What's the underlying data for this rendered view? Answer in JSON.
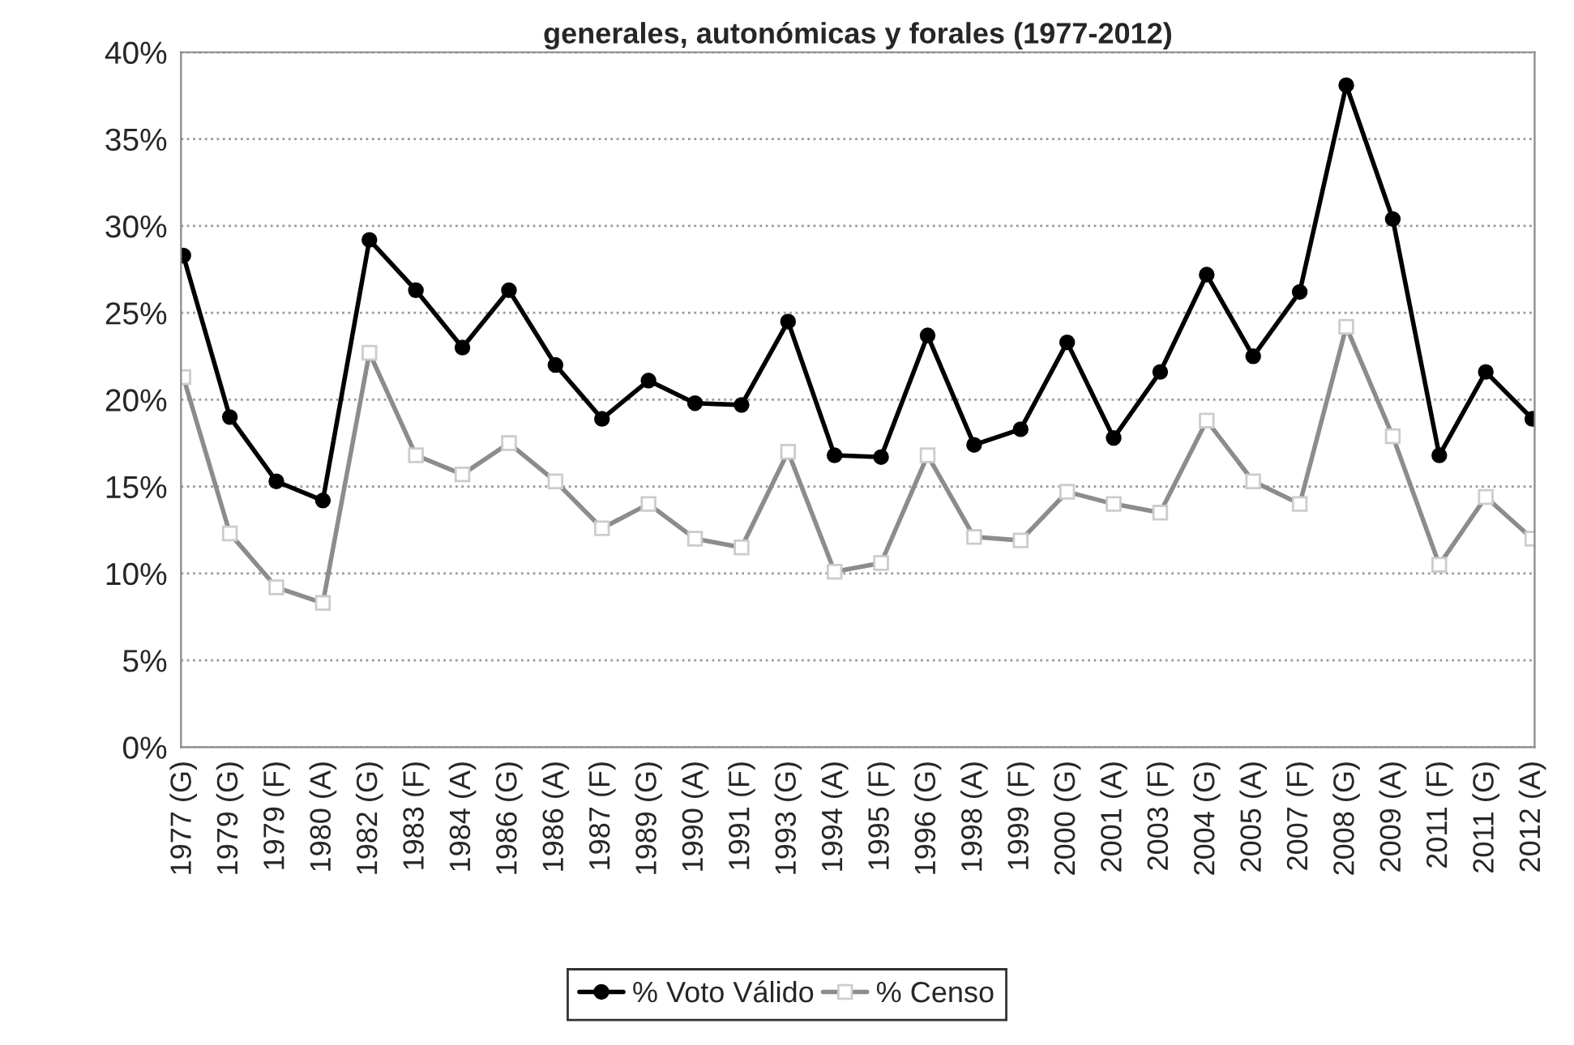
{
  "chart_data": {
    "type": "line",
    "title": "generales, autonómicas y forales (1977-2012)",
    "categories": [
      "1977 (G)",
      "1979 (G)",
      "1979 (F)",
      "1980 (A)",
      "1982 (G)",
      "1983 (F)",
      "1984 (A)",
      "1986 (G)",
      "1986 (A)",
      "1987 (F)",
      "1989 (G)",
      "1990 (A)",
      "1991 (F)",
      "1993 (G)",
      "1994 (A)",
      "1995 (F)",
      "1996 (G)",
      "1998 (A)",
      "1999 (F)",
      "2000 (G)",
      "2001 (A)",
      "2003 (F)",
      "2004 (G)",
      "2005 (A)",
      "2007 (F)",
      "2008 (G)",
      "2009 (A)",
      "2011 (F)",
      "2011 (G)",
      "2012 (A)"
    ],
    "series": [
      {
        "name": "% Voto Válido",
        "color": "#000000",
        "marker": "circle",
        "values": [
          28.3,
          19.0,
          15.3,
          14.2,
          29.2,
          26.3,
          23.0,
          26.3,
          22.0,
          18.9,
          21.1,
          19.8,
          19.7,
          24.5,
          16.8,
          16.7,
          23.7,
          17.4,
          18.3,
          23.3,
          17.8,
          21.6,
          27.2,
          22.5,
          26.2,
          38.1,
          30.4,
          16.8,
          21.6,
          18.9
        ]
      },
      {
        "name": "% Censo",
        "color": "#8c8c8c",
        "marker": "square",
        "values": [
          21.3,
          12.3,
          9.2,
          8.3,
          22.7,
          16.8,
          15.7,
          17.5,
          15.3,
          12.6,
          14.0,
          12.0,
          11.5,
          17.0,
          10.1,
          10.6,
          16.8,
          12.1,
          11.9,
          14.7,
          14.0,
          13.5,
          18.8,
          15.3,
          14.0,
          24.2,
          17.9,
          10.5,
          14.4,
          12.0
        ]
      }
    ],
    "ylim": [
      0,
      40
    ],
    "yticks": [
      {
        "value": 0,
        "label": "0%"
      },
      {
        "value": 5,
        "label": "5%"
      },
      {
        "value": 10,
        "label": "10%"
      },
      {
        "value": 15,
        "label": "15%"
      },
      {
        "value": 20,
        "label": "20%"
      },
      {
        "value": 25,
        "label": "25%"
      },
      {
        "value": 30,
        "label": "30%"
      },
      {
        "value": 35,
        "label": "35%"
      },
      {
        "value": 40,
        "label": "40%"
      }
    ],
    "grid": "y",
    "legend": "bottom",
    "line_style": "solid"
  }
}
